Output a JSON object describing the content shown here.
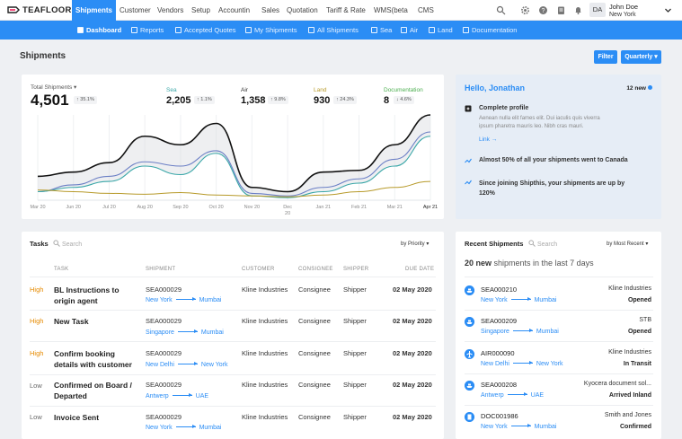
{
  "app": {
    "logo": "TEAFLOOR"
  },
  "nav": {
    "tabs": [
      "Shipments",
      "Customer",
      "Vendors",
      "Setup",
      "Accountin",
      "Sales",
      "Quotation",
      "Tariff & Rate",
      "WMS(beta",
      "CMS"
    ]
  },
  "user": {
    "initials": "DA",
    "name": "John Doe",
    "location": "New York"
  },
  "subnav": {
    "items": [
      "Dashboard",
      "Reports",
      "Accepted Quotes",
      "My Shipments",
      "All Shipments",
      "Sea",
      "Air",
      "Land",
      "Documentation"
    ]
  },
  "page": {
    "title": "Shipments",
    "filter_label": "Filter",
    "period_label": "Quarterly"
  },
  "stats": {
    "total": {
      "label": "Total Shipments",
      "value": "4,501",
      "change": "35.1%"
    },
    "sea": {
      "label": "Sea",
      "value": "2,205",
      "change": "1.1%"
    },
    "air": {
      "label": "Air",
      "value": "1,358",
      "change": "9.8%"
    },
    "land": {
      "label": "Land",
      "value": "930",
      "change": "24.3%"
    },
    "doc": {
      "label": "Documentation",
      "value": "8",
      "change": "4.6%"
    }
  },
  "colors": {
    "accent": "#2b8df5",
    "sea": "#3aa7a8",
    "air": "#6b7fc5",
    "land": "#b79a2a",
    "doc": "#4caf50",
    "high": "#e68a00"
  },
  "chart_data": {
    "type": "line",
    "x": [
      "Mar 20",
      "Jun 20",
      "Jul 20",
      "Aug 20",
      "Sep 20",
      "Oct 20",
      "Nov 20",
      "Dec 20",
      "Jan 21",
      "Feb 21",
      "Mar 21",
      "Apr 21"
    ],
    "series": [
      {
        "name": "",
        "values": [
          28,
          33,
          44,
          75,
          65,
          90,
          15,
          10,
          33,
          35,
          65,
          100
        ]
      },
      {
        "name": "",
        "values": [
          10,
          18,
          28,
          45,
          40,
          58,
          8,
          5,
          15,
          25,
          48,
          80
        ]
      },
      {
        "name": "",
        "values": [
          10,
          15,
          22,
          40,
          30,
          55,
          5,
          3,
          10,
          20,
          40,
          75
        ]
      },
      {
        "name": "",
        "values": [
          12,
          10,
          8,
          7,
          9,
          6,
          5,
          4,
          6,
          10,
          15,
          22
        ]
      }
    ]
  },
  "hello": {
    "title": "Hello, Jonathan",
    "new_count": "12 new",
    "profile_title": "Complete profile",
    "profile_text": "Aenean nulla elit fames elit. Dui iaculis quis viverra ipsum pharetra mauris leo. Nibh cras mauri.",
    "link": "Link →",
    "insight1": "Almost 50% of all your shipments went to Canada",
    "insight2": "Since joining Shipthis, your shipments are up by 120%"
  },
  "tasks": {
    "title": "Tasks",
    "search_placeholder": "Search",
    "sort": "by Priority",
    "headers": [
      "TASK",
      "SHIPMENT",
      "CUSTOMER",
      "CONSIGNEE",
      "SHIPPER",
      "DUE DATE"
    ],
    "rows": [
      {
        "priority": "High",
        "task": "BL Instructions to origin agent",
        "shipment": "SEA000029",
        "from": "New York",
        "to": "Mumbai",
        "customer": "Kline Industries",
        "consignee": "Consignee",
        "shipper": "Shipper",
        "due": "02 May 2020"
      },
      {
        "priority": "High",
        "task": "New Task",
        "shipment": "SEA000029",
        "from": "Singapore",
        "to": "Mumbai",
        "customer": "Kline Industries",
        "consignee": "Consignee",
        "shipper": "Shipper",
        "due": "02 May 2020"
      },
      {
        "priority": "High",
        "task": "Confirm booking details with customer",
        "shipment": "SEA000029",
        "from": "New Delhi",
        "to": "New York",
        "customer": "Kline Industries",
        "consignee": "Consignee",
        "shipper": "Shipper",
        "due": "02 May 2020"
      },
      {
        "priority": "Low",
        "task": "Confirmed on Board / Departed",
        "shipment": "SEA000029",
        "from": "Antwerp",
        "to": "UAE",
        "customer": "Kline Industries",
        "consignee": "Consignee",
        "shipper": "Shipper",
        "due": "02 May 2020"
      },
      {
        "priority": "Low",
        "task": "Invoice Sent",
        "shipment": "SEA000029",
        "from": "New York",
        "to": "Mumbai",
        "customer": "Kline Industries",
        "consignee": "Consignee",
        "shipper": "Shipper",
        "due": "02 May 2020"
      }
    ]
  },
  "recent": {
    "title": "Recent Shipments",
    "search_placeholder": "Search",
    "sort": "by Most Recent",
    "summary_count": "20 new",
    "summary_text": "shipments in the last 7 days",
    "rows": [
      {
        "id": "SEA000210",
        "from": "New York",
        "to": "Mumbai",
        "customer": "Kline Industries",
        "status": "Opened",
        "icon": "ship-icon"
      },
      {
        "id": "SEA000209",
        "from": "Singapore",
        "to": "Mumbai",
        "customer": "STB",
        "status": "Opened",
        "icon": "ship-icon"
      },
      {
        "id": "AIR000090",
        "from": "New Delhi",
        "to": "New York",
        "customer": "Kline Industries",
        "status": "In Transit",
        "icon": "plane-icon"
      },
      {
        "id": "SEA000208",
        "from": "Antwerp",
        "to": "UAE",
        "customer": "Kyocera document sol...",
        "status": "Arrived Inland",
        "icon": "ship-icon"
      },
      {
        "id": "DOC001986",
        "from": "New York",
        "to": "Mumbai",
        "customer": "Smith and Jones",
        "status": "Confirmed",
        "icon": "document-icon"
      }
    ]
  }
}
